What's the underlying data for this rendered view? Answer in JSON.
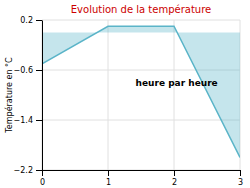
{
  "chart_data": {
    "type": "area",
    "title": "Evolution de la température",
    "ylabel": "Température en °C",
    "annotation": "heure par heure",
    "x": [
      0,
      1,
      2,
      3
    ],
    "values": [
      -0.5,
      0.1,
      0.1,
      -2.0
    ],
    "color": "#5ab4c8",
    "xlim": [
      0,
      3
    ],
    "ylim": [
      -2.2,
      0.2
    ],
    "xticks": [
      0,
      1,
      2,
      3
    ],
    "yticks": [
      0.2,
      -0.6,
      -1.4,
      -2.2
    ],
    "grid": true
  }
}
